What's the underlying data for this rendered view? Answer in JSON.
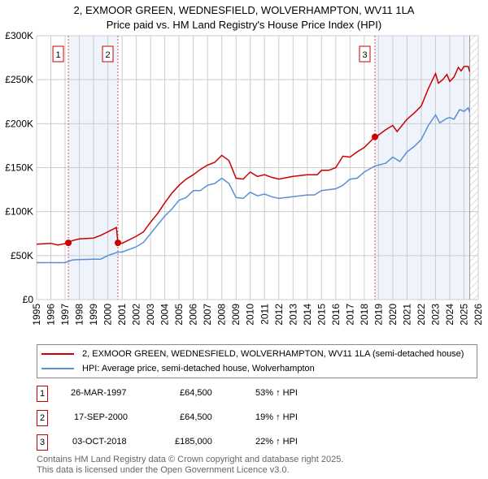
{
  "chart_data": {
    "type": "line",
    "title": "2, EXMOOR GREEN, WEDNESFIELD, WOLVERHAMPTON, WV11 1LA",
    "subtitle": "Price paid vs. HM Land Registry's House Price Index (HPI)",
    "xlim": [
      1995,
      2026
    ],
    "ylim": [
      0,
      300000
    ],
    "x_ticks": [
      "1995",
      "1996",
      "1997",
      "1998",
      "1999",
      "2000",
      "2001",
      "2002",
      "2003",
      "2004",
      "2005",
      "2006",
      "2007",
      "2008",
      "2009",
      "2010",
      "2011",
      "2012",
      "2013",
      "2014",
      "2015",
      "2016",
      "2017",
      "2018",
      "2019",
      "2020",
      "2021",
      "2022",
      "2023",
      "2024",
      "2025",
      "2026"
    ],
    "y_ticks": [
      {
        "v": 0,
        "label": "£0"
      },
      {
        "v": 50000,
        "label": "£50K"
      },
      {
        "v": 100000,
        "label": "£100K"
      },
      {
        "v": 150000,
        "label": "£150K"
      },
      {
        "v": 200000,
        "label": "£200K"
      },
      {
        "v": 250000,
        "label": "£250K"
      },
      {
        "v": 300000,
        "label": "£300K"
      }
    ],
    "grid": true,
    "shaded_ranges": [
      [
        1997.23,
        2000.71
      ],
      [
        2018.75,
        2025.4
      ]
    ],
    "hatched_from": 2025.4,
    "series": [
      {
        "name": "2, EXMOOR GREEN, WEDNESFIELD, WOLVERHAMPTON, WV11 1LA (semi-detached house)",
        "color": "#cc0000",
        "x": [
          1995,
          1996,
          1996.5,
          1997.23,
          1997.5,
          1998,
          1999,
          1999.5,
          2000,
          2000.6,
          2000.71,
          2001,
          2002,
          2002.5,
          2003,
          2003.5,
          2004,
          2004.5,
          2005,
          2005.5,
          2006,
          2006.5,
          2007,
          2007.5,
          2008,
          2008.5,
          2009,
          2009.5,
          2010,
          2010.5,
          2011,
          2011.5,
          2012,
          2013,
          2014,
          2014.7,
          2015,
          2015.5,
          2016,
          2016.5,
          2017,
          2017.5,
          2018,
          2018.75,
          2019,
          2019.5,
          2020,
          2020.3,
          2021,
          2021.5,
          2022,
          2022.5,
          2023,
          2023.2,
          2023.5,
          2023.8,
          2024,
          2024.3,
          2024.6,
          2024.8,
          2025,
          2025.3,
          2025.4
        ],
        "y": [
          63000,
          64000,
          62000,
          64500,
          67000,
          69000,
          70000,
          73000,
          77000,
          82000,
          64500,
          64000,
          72000,
          77000,
          88000,
          98000,
          110000,
          121000,
          130000,
          137000,
          142000,
          148000,
          153000,
          156000,
          164000,
          158000,
          138000,
          137000,
          145000,
          140000,
          142000,
          139000,
          137000,
          140000,
          142000,
          142000,
          147000,
          147000,
          150000,
          163000,
          162000,
          168000,
          173000,
          185000,
          187000,
          193000,
          198000,
          191000,
          205000,
          212000,
          220000,
          240000,
          257000,
          246000,
          250000,
          256000,
          248000,
          253000,
          264000,
          260000,
          265000,
          265000,
          259000
        ]
      },
      {
        "name": "HPI: Average price, semi-detached house, Wolverhampton",
        "color": "#5b8fd4",
        "x": [
          1995,
          1996,
          1997,
          1997.5,
          1998,
          1999,
          1999.5,
          2000,
          2000.7,
          2001,
          2002,
          2002.5,
          2003,
          2003.5,
          2004,
          2004.5,
          2005,
          2005.5,
          2006,
          2006.5,
          2007,
          2007.5,
          2008,
          2008.5,
          2009,
          2009.5,
          2010,
          2010.5,
          2011,
          2011.5,
          2012,
          2013,
          2014,
          2014.5,
          2015,
          2016,
          2016.5,
          2017,
          2017.5,
          2018,
          2018.75,
          2019,
          2019.5,
          2020,
          2020.5,
          2021,
          2021.5,
          2022,
          2022.5,
          2023,
          2023.3,
          2023.8,
          2024,
          2024.3,
          2024.7,
          2025,
          2025.3,
          2025.4
        ],
        "y": [
          42000,
          42000,
          42000,
          45000,
          45500,
          46000,
          46000,
          50000,
          54000,
          54000,
          60000,
          65000,
          75000,
          85000,
          95000,
          103000,
          113000,
          116000,
          124000,
          124000,
          130000,
          132000,
          138000,
          132000,
          116000,
          115000,
          122000,
          118000,
          120000,
          117000,
          115000,
          117000,
          119000,
          119000,
          124000,
          126000,
          130000,
          137000,
          138000,
          145000,
          152000,
          153000,
          155000,
          162000,
          157000,
          168000,
          174000,
          182000,
          198000,
          210000,
          201000,
          206000,
          207000,
          205000,
          216000,
          214000,
          218000,
          213000
        ]
      }
    ],
    "sales": [
      {
        "id": "1",
        "x": 1997.23,
        "y": 64500
      },
      {
        "id": "2",
        "x": 2000.71,
        "y": 64500
      },
      {
        "id": "3",
        "x": 2018.75,
        "y": 185000
      }
    ]
  },
  "legend": {
    "property": "2, EXMOOR GREEN, WEDNESFIELD, WOLVERHAMPTON, WV11 1LA (semi-detached house)",
    "hpi": "HPI: Average price, semi-detached house, Wolverhampton"
  },
  "transactions": [
    {
      "id": "1",
      "date": "26-MAR-1997",
      "price": "£64,500",
      "hpi": "53% ↑ HPI"
    },
    {
      "id": "2",
      "date": "17-SEP-2000",
      "price": "£64,500",
      "hpi": "19% ↑ HPI"
    },
    {
      "id": "3",
      "date": "03-OCT-2018",
      "price": "£185,000",
      "hpi": "22% ↑ HPI"
    }
  ],
  "footer": {
    "line1": "Contains HM Land Registry data © Crown copyright and database right 2025.",
    "line2": "This data is licensed under the Open Government Licence v3.0."
  }
}
